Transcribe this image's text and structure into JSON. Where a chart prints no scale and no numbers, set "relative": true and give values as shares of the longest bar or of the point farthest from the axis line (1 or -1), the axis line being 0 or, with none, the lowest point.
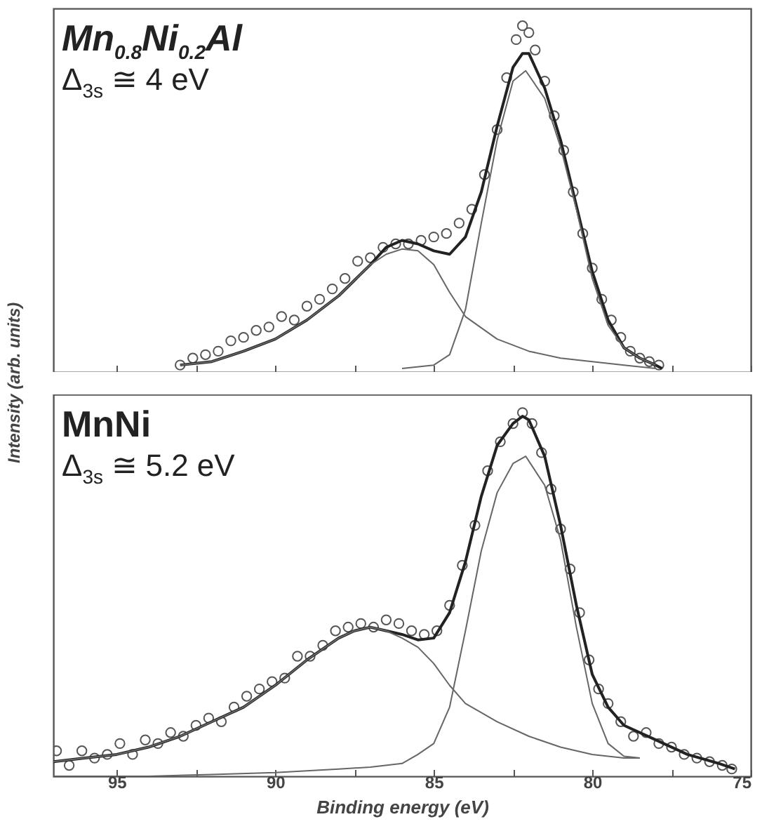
{
  "chart_data": [
    {
      "type": "line",
      "relative": true,
      "ylabel": "Intensity (arb. units)",
      "annotations": [
        "Mn$_{0.8}$Ni$_{0.2}$Al",
        "Δ$_{3s}$ ≅ 4 eV"
      ],
      "xlim": [
        97,
        75
      ],
      "xticks": [
        95,
        {
          "value": 92.5,
          "label": null
        },
        90,
        {
          "value": 87.5,
          "label": null
        },
        85,
        {
          "value": 82.5,
          "label": null
        },
        80,
        {
          "value": 77.5,
          "label": null
        },
        75
      ],
      "tick_labels": false,
      "series": [
        {
          "type": "scatter",
          "marker": "circle",
          "color": "#555555",
          "x": [
            93.0,
            92.6,
            92.2,
            91.8,
            91.4,
            91.0,
            90.6,
            90.2,
            89.8,
            89.4,
            89.0,
            88.6,
            88.2,
            87.8,
            87.4,
            87.0,
            86.6,
            86.2,
            85.8,
            85.4,
            85.0,
            84.6,
            84.2,
            83.8,
            83.4,
            83.0,
            82.7,
            82.4,
            82.2,
            82.0,
            81.8,
            81.5,
            81.2,
            80.9,
            80.6,
            80.3,
            80.0,
            79.7,
            79.4,
            79.1,
            78.8,
            78.5,
            78.2,
            77.9
          ],
          "values": [
            0.02,
            0.04,
            0.05,
            0.06,
            0.09,
            0.1,
            0.12,
            0.13,
            0.16,
            0.15,
            0.19,
            0.21,
            0.24,
            0.27,
            0.32,
            0.33,
            0.36,
            0.37,
            0.37,
            0.38,
            0.39,
            0.4,
            0.43,
            0.47,
            0.57,
            0.7,
            0.85,
            0.96,
            1.0,
            0.98,
            0.93,
            0.84,
            0.74,
            0.64,
            0.52,
            0.4,
            0.3,
            0.21,
            0.15,
            0.1,
            0.06,
            0.04,
            0.03,
            0.02
          ]
        },
        {
          "type": "line",
          "color": "#666666",
          "x": [
            86,
            85,
            84.5,
            84,
            83.5,
            83,
            82.5,
            82.1,
            81.5,
            81,
            80.5,
            80,
            79.5,
            79,
            78.5,
            78
          ],
          "values": [
            0.01,
            0.02,
            0.05,
            0.18,
            0.43,
            0.67,
            0.84,
            0.87,
            0.79,
            0.65,
            0.47,
            0.27,
            0.135,
            0.07,
            0.04,
            0.02
          ]
        },
        {
          "type": "line",
          "color": "#666666",
          "x": [
            93,
            92,
            91,
            90,
            89,
            88,
            87,
            86.5,
            86,
            85.5,
            85,
            84.5,
            84,
            83,
            82,
            81,
            80,
            79,
            78
          ],
          "values": [
            0.02,
            0.03,
            0.06,
            0.095,
            0.15,
            0.22,
            0.31,
            0.34,
            0.355,
            0.35,
            0.31,
            0.23,
            0.16,
            0.095,
            0.06,
            0.04,
            0.03,
            0.02,
            0.01
          ]
        },
        {
          "type": "line",
          "color": "#222222",
          "x": [
            93,
            92,
            91,
            90,
            89,
            88,
            87,
            86.5,
            86,
            85.5,
            85,
            84.5,
            84,
            83.5,
            83,
            82.5,
            82.2,
            82,
            81.5,
            81,
            80.5,
            80,
            79.5,
            79,
            78.5,
            78,
            77.8
          ],
          "values": [
            0.02,
            0.03,
            0.06,
            0.095,
            0.15,
            0.22,
            0.31,
            0.36,
            0.38,
            0.37,
            0.35,
            0.34,
            0.39,
            0.52,
            0.71,
            0.88,
            0.92,
            0.92,
            0.82,
            0.67,
            0.48,
            0.29,
            0.15,
            0.07,
            0.04,
            0.02,
            0.01
          ]
        }
      ]
    },
    {
      "type": "line",
      "relative": true,
      "xlabel": "Binding energy (eV)",
      "annotations": [
        "MnNi",
        "Δ$_{3s}$ ≅ 5.2 eV"
      ],
      "xlim": [
        97,
        75
      ],
      "xticks": [
        95,
        {
          "value": 92.5,
          "label": null
        },
        90,
        {
          "value": 87.5,
          "label": null
        },
        85,
        {
          "value": 82.5,
          "label": null
        },
        80,
        {
          "value": 77.5,
          "label": null
        },
        75
      ],
      "tick_labels": "x",
      "series": [
        {
          "type": "scatter",
          "marker": "circle",
          "color": "#555555",
          "x": [
            96.9,
            96.5,
            96.1,
            95.7,
            95.3,
            94.9,
            94.5,
            94.1,
            93.7,
            93.3,
            92.9,
            92.5,
            92.1,
            91.7,
            91.3,
            90.9,
            90.5,
            90.1,
            89.7,
            89.3,
            88.9,
            88.5,
            88.1,
            87.7,
            87.3,
            86.9,
            86.5,
            86.1,
            85.7,
            85.3,
            84.9,
            84.5,
            84.1,
            83.7,
            83.3,
            82.9,
            82.5,
            82.2,
            81.9,
            81.6,
            81.3,
            81.0,
            80.7,
            80.4,
            80.1,
            79.8,
            79.5,
            79.1,
            78.7,
            78.3,
            77.9,
            77.5,
            77.1,
            76.7,
            76.3,
            75.9,
            75.6
          ],
          "values": [
            0.07,
            0.03,
            0.07,
            0.05,
            0.06,
            0.09,
            0.06,
            0.1,
            0.09,
            0.12,
            0.11,
            0.14,
            0.16,
            0.15,
            0.19,
            0.22,
            0.24,
            0.26,
            0.27,
            0.33,
            0.33,
            0.36,
            0.4,
            0.41,
            0.42,
            0.41,
            0.43,
            0.42,
            0.4,
            0.39,
            0.4,
            0.47,
            0.58,
            0.69,
            0.84,
            0.92,
            0.97,
            1.0,
            0.97,
            0.89,
            0.79,
            0.68,
            0.57,
            0.45,
            0.32,
            0.24,
            0.2,
            0.15,
            0.11,
            0.12,
            0.09,
            0.08,
            0.06,
            0.05,
            0.04,
            0.03,
            0.02
          ]
        },
        {
          "type": "line",
          "color": "#666666",
          "x": [
            97,
            94,
            92,
            90,
            88,
            87,
            86,
            85.5,
            85,
            84.5,
            84,
            83.5,
            83,
            82.5,
            82.1,
            81.5,
            81,
            80.5,
            80,
            79.5,
            79,
            78.5
          ],
          "values": [
            0.0,
            0.0,
            0.005,
            0.01,
            0.02,
            0.025,
            0.035,
            0.06,
            0.09,
            0.19,
            0.4,
            0.62,
            0.78,
            0.86,
            0.88,
            0.8,
            0.65,
            0.41,
            0.2,
            0.09,
            0.055,
            0.05
          ]
        },
        {
          "type": "line",
          "color": "#666666",
          "x": [
            97,
            96,
            95,
            94,
            93,
            92,
            91,
            90,
            89,
            88,
            87.5,
            87,
            86.5,
            86,
            85.5,
            85,
            84.5,
            84,
            83,
            82,
            81,
            80,
            79,
            78.5
          ],
          "values": [
            0.04,
            0.05,
            0.06,
            0.08,
            0.11,
            0.15,
            0.19,
            0.25,
            0.32,
            0.38,
            0.4,
            0.41,
            0.4,
            0.38,
            0.355,
            0.31,
            0.25,
            0.2,
            0.15,
            0.11,
            0.08,
            0.06,
            0.05,
            0.05
          ]
        },
        {
          "type": "line",
          "color": "#222222",
          "x": [
            97,
            96,
            95,
            94,
            93,
            92,
            91,
            90,
            89,
            88,
            87.5,
            87,
            86.5,
            86,
            85.5,
            85,
            84.5,
            84,
            83.5,
            83,
            82.5,
            82.2,
            82,
            81.5,
            81,
            80.5,
            80,
            79.5,
            79,
            78,
            77,
            76,
            75.5
          ],
          "values": [
            0.04,
            0.05,
            0.06,
            0.08,
            0.11,
            0.15,
            0.19,
            0.25,
            0.32,
            0.38,
            0.4,
            0.41,
            0.4,
            0.39,
            0.375,
            0.38,
            0.45,
            0.59,
            0.77,
            0.91,
            0.97,
            0.99,
            0.98,
            0.88,
            0.69,
            0.47,
            0.28,
            0.19,
            0.14,
            0.1,
            0.06,
            0.035,
            0.02
          ]
        }
      ]
    }
  ]
}
